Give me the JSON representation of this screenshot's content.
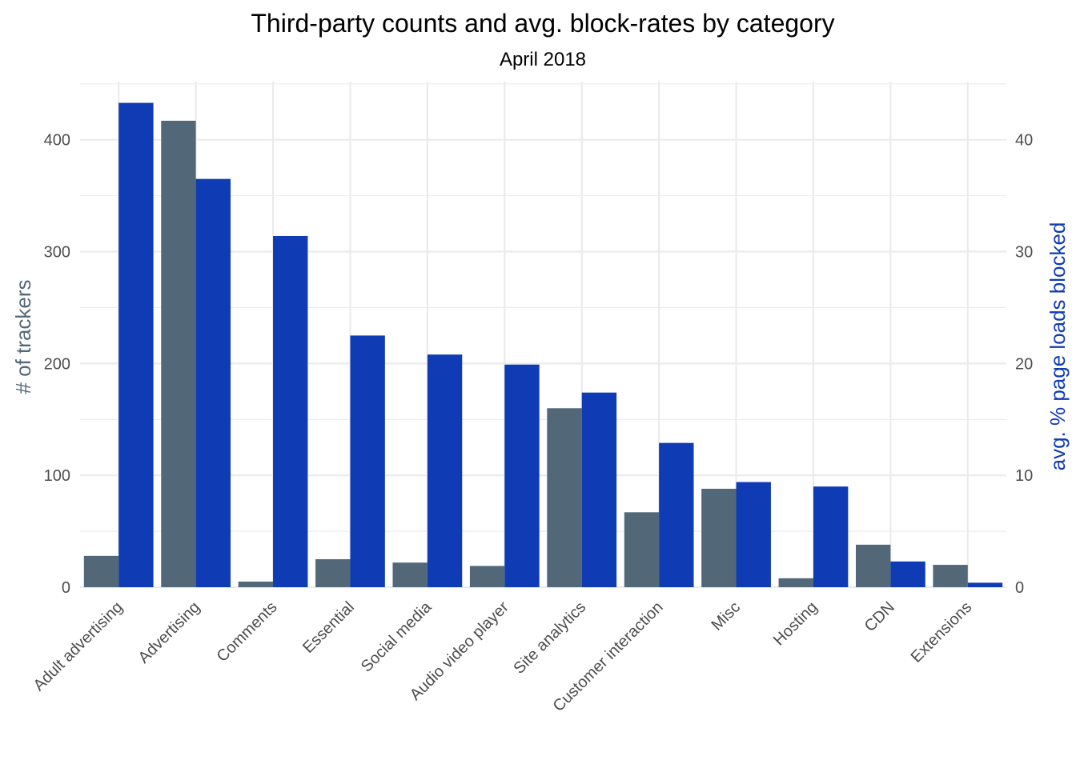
{
  "chart_data": {
    "type": "bar",
    "title": "Third-party counts and avg. block-rates by category",
    "subtitle": "April 2018",
    "ylabel": "# of trackers",
    "y2label": "avg. % page loads blocked",
    "ylim": [
      0,
      452
    ],
    "y2lim": [
      0,
      45.2
    ],
    "y_ticks": [
      "0",
      "100",
      "200",
      "300",
      "400"
    ],
    "y2_ticks": [
      "0",
      "10",
      "20",
      "30",
      "40"
    ],
    "grid": true,
    "legend": "none",
    "categories": [
      "Adult advertising",
      "Advertising",
      "Comments",
      "Essential",
      "Social media",
      "Audio video player",
      "Site analytics",
      "Customer interaction",
      "Misc",
      "Hosting",
      "CDN",
      "Extensions"
    ],
    "series": [
      {
        "axis": "left",
        "color": "#526878",
        "values": [
          28,
          417,
          5,
          25,
          22,
          19,
          160,
          67,
          88,
          8,
          38,
          20
        ]
      },
      {
        "axis": "right",
        "color": "#0f3bb5",
        "values": [
          43.3,
          36.5,
          31.4,
          22.5,
          20.8,
          19.9,
          17.4,
          12.9,
          9.4,
          9.0,
          2.3,
          0.4
        ]
      }
    ],
    "colors": {
      "left_axis_title": "#526878",
      "right_axis_title": "#0f3bb5"
    }
  }
}
